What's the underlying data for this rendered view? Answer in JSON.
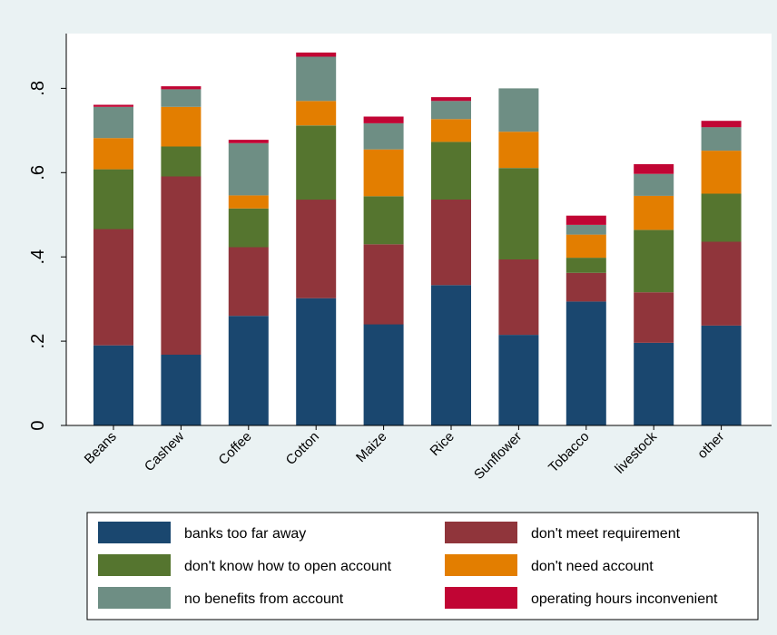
{
  "chart_data": {
    "type": "bar",
    "stacked": true,
    "categories": [
      "Beans",
      "Cashew",
      "Coffee",
      "Cotton",
      "Maize",
      "Rice",
      "Sunflower",
      "Tobacco",
      "livestock",
      "other"
    ],
    "series": [
      {
        "name": "banks too far away",
        "color": "#1a476f",
        "values": [
          0.19,
          0.168,
          0.26,
          0.302,
          0.24,
          0.333,
          0.215,
          0.294,
          0.196,
          0.237
        ]
      },
      {
        "name": "don't meet requirement",
        "color": "#90353b",
        "values": [
          0.276,
          0.423,
          0.163,
          0.234,
          0.19,
          0.203,
          0.179,
          0.068,
          0.12,
          0.199
        ]
      },
      {
        "name": "don't know how to open account",
        "color": "#55752f",
        "values": [
          0.142,
          0.071,
          0.092,
          0.176,
          0.114,
          0.137,
          0.217,
          0.036,
          0.148,
          0.114
        ]
      },
      {
        "name": "don't need account",
        "color": "#e37e00",
        "values": [
          0.074,
          0.094,
          0.031,
          0.058,
          0.111,
          0.054,
          0.086,
          0.055,
          0.081,
          0.102
        ]
      },
      {
        "name": "no benefits from account",
        "color": "#6e8e84",
        "values": [
          0.074,
          0.042,
          0.124,
          0.105,
          0.062,
          0.043,
          0.103,
          0.023,
          0.052,
          0.056
        ]
      },
      {
        "name": "operating hours inconvenient",
        "color": "#c10534",
        "values": [
          0.005,
          0.007,
          0.008,
          0.01,
          0.016,
          0.009,
          0,
          0.022,
          0.023,
          0.015
        ]
      }
    ],
    "yticks": [
      0,
      0.2,
      0.4,
      0.6,
      0.8
    ],
    "ytick_labels": [
      "0",
      ".2",
      ".4",
      ".6",
      ".8"
    ],
    "ylim": [
      0,
      0.93
    ],
    "grid": false,
    "legend_position": "bottom",
    "title": "",
    "xlabel": "",
    "ylabel": ""
  },
  "colors": {
    "background": "#eaf2f3",
    "plot_area": "#ffffff",
    "legend_box": "#ffffff"
  }
}
